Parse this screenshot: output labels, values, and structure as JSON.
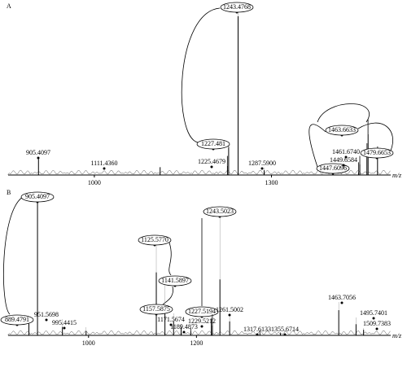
{
  "chart_data": [
    {
      "type": "stick",
      "title": "A",
      "x_label": "m/z",
      "x": [
        905.4097,
        1111.436,
        1225.4679,
        1227.481,
        1243.4768,
        1287.59,
        1447.6096,
        1449.6584,
        1461.674,
        1463.6633,
        1479.6653
      ],
      "x_labels": [
        "905.4097",
        "1111.4360",
        "1225.4679",
        "1227.481",
        "1243.4768",
        "1287.5900",
        "1447.6096",
        "1449.6584",
        "1461.6740",
        "1463.6633",
        "1479.6653"
      ],
      "values": [
        10,
        5,
        12,
        18,
        100,
        3,
        8,
        12,
        20,
        35,
        18
      ],
      "circled": [
        false,
        false,
        false,
        true,
        true,
        false,
        true,
        false,
        false,
        true,
        true
      ],
      "xlim": [
        854,
        1502
      ],
      "ylim": [
        0,
        100
      ],
      "xticks": [
        1000,
        1300
      ],
      "color": "#000000"
    },
    {
      "type": "stick",
      "title": "B",
      "x_label": "m/z",
      "x": [
        889.4791,
        905.4097,
        951.5698,
        995.4415,
        1125.577,
        1141.5897,
        1157.5875,
        1171.5674,
        1189.4873,
        1227.5194,
        1229.5212,
        1243.5023,
        1261.5002,
        1317.6133,
        1355.6714,
        1463.7056,
        1495.7401,
        1509.7383
      ],
      "x_labels": [
        "889.4791",
        "905.4097",
        "951.5698",
        "995.4415",
        "1125.5770",
        "1141.5897",
        "1157.5875",
        "1171.5674",
        "1189.4873",
        "1227.5194",
        "1229.5212",
        "1243.5023",
        "1261.5002",
        "1317.6133",
        "1355.6714",
        "1463.7056",
        "1495.7401",
        "1509.7383"
      ],
      "values": [
        12,
        100,
        6,
        3,
        45,
        20,
        10,
        6,
        5,
        12,
        15,
        40,
        10,
        3,
        2,
        18,
        8,
        4
      ],
      "circled": [
        true,
        true,
        false,
        false,
        true,
        true,
        true,
        false,
        false,
        true,
        false,
        true,
        false,
        false,
        false,
        false,
        false,
        false
      ],
      "xlim": [
        851,
        1560
      ],
      "ylim": [
        0,
        100
      ],
      "xticks": [
        1000,
        1200
      ],
      "color": "#000000"
    }
  ]
}
